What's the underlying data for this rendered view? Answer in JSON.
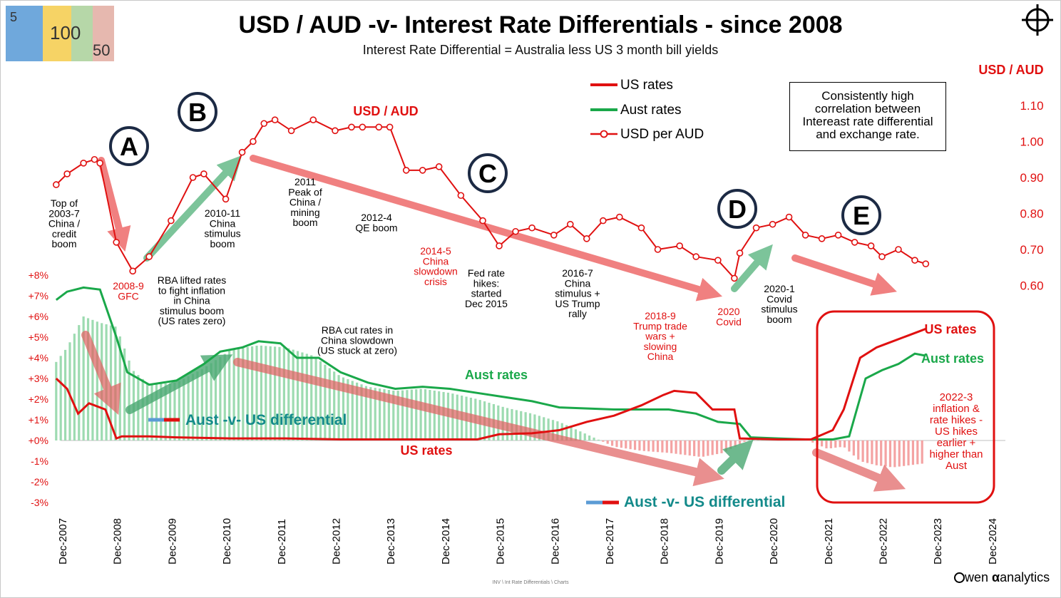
{
  "header": {
    "title": "USD / AUD -v- Interest Rate Differentials - since 2008",
    "subtitle": "Interest Rate Differential = Australia less US 3 month bill yields",
    "right_axis_title": "USD / AUD"
  },
  "legend": [
    {
      "label": "US rates",
      "color": "#e01010",
      "marker": "line"
    },
    {
      "label": "Aust rates",
      "color": "#1aa84a",
      "marker": "line"
    },
    {
      "label": "USD per AUD",
      "color": "#e01010",
      "marker": "circle"
    }
  ],
  "notes_box": [
    "Consistently high",
    "correlation between",
    "Intereast rate differential",
    "and exchange rate."
  ],
  "phase_labels": [
    "A",
    "B",
    "C",
    "D",
    "E"
  ],
  "annotations": {
    "usd_aud_label": "USD / AUD",
    "top_2003": [
      "Top of",
      "2003-7",
      "China /",
      "credit",
      "boom"
    ],
    "gfc": [
      "2008-9",
      "GFC"
    ],
    "stimulus_2010": [
      "2010-11",
      "China",
      "stimulus",
      "boom"
    ],
    "peak_2011": [
      "2011",
      "Peak of",
      "China /",
      "mining",
      "boom"
    ],
    "qe_boom": [
      "2012-4",
      "QE boom"
    ],
    "china_2014": [
      "2014-5",
      "China",
      "slowdown",
      "crisis"
    ],
    "fed_hikes": [
      "Fed rate",
      "hikes:",
      "started",
      "Dec 2015"
    ],
    "china_2016": [
      "2016-7",
      "China",
      "stimulus +",
      "US Trump",
      "rally"
    ],
    "trump_wars": [
      "2018-9",
      "Trump trade",
      "wars +",
      "slowing",
      "China"
    ],
    "covid": [
      "2020",
      "Covid"
    ],
    "covid_boom": [
      "2020-1",
      "Covid",
      "stimulus",
      "boom"
    ],
    "rba_lifted": [
      "RBA lifted rates",
      "to fight inflation",
      "in China",
      "stimulus boom",
      "(US rates zero)"
    ],
    "rba_cut": [
      "RBA cut rates in",
      "China slowdown",
      "(US stuck at zero)"
    ],
    "aust_rates_mid": "Aust rates",
    "us_rates_mid": "US rates",
    "us_rates_right": "US rates",
    "aust_rates_right": "Aust rates",
    "inflation_2022": [
      "2022-3",
      "inflation &",
      "rate hikes -",
      "US hikes",
      "earlier +",
      "higher than",
      "Aust"
    ],
    "diff_label": "Aust -v- US differential"
  },
  "footer": {
    "brand": "wen",
    "brand_symbol": "α",
    "brand_word": "analytics",
    "path": "INV \\ Int Rate Differentials \\ Charts"
  },
  "chart_data": {
    "type": "line",
    "x_tick_labels": [
      "Dec-2007",
      "Dec-2008",
      "Dec-2009",
      "Dec-2010",
      "Dec-2011",
      "Dec-2012",
      "Dec-2013",
      "Dec-2014",
      "Dec-2015",
      "Dec-2016",
      "Dec-2017",
      "Dec-2018",
      "Dec-2019",
      "Dec-2020",
      "Dec-2021",
      "Dec-2022",
      "Dec-2023",
      "Dec-2024"
    ],
    "left_axis": {
      "tick_labels": [
        "+8%",
        "+7%",
        "+6%",
        "+5%",
        "+4%",
        "+3%",
        "+2%",
        "+1%",
        "+0%",
        "-1%",
        "-2%",
        "-3%"
      ],
      "ylim": [
        -3,
        8
      ]
    },
    "right_axis": {
      "tick_labels": [
        "1.10",
        "1.00",
        "0.90",
        "0.80",
        "0.70",
        "0.60"
      ],
      "ylim": [
        0.6,
        1.1
      ]
    },
    "series": [
      {
        "name": "USD per AUD",
        "axis": "right",
        "color": "#e01010",
        "x": [
          2007.8,
          2008.0,
          2008.3,
          2008.5,
          2008.6,
          2008.9,
          2009.2,
          2009.5,
          2009.9,
          2010.3,
          2010.5,
          2010.9,
          2011.2,
          2011.4,
          2011.6,
          2011.8,
          2012.1,
          2012.5,
          2012.9,
          2013.2,
          2013.4,
          2013.7,
          2013.9,
          2014.2,
          2014.5,
          2014.8,
          2015.2,
          2015.6,
          2015.9,
          2016.2,
          2016.5,
          2016.9,
          2017.2,
          2017.5,
          2017.8,
          2018.1,
          2018.5,
          2018.8,
          2019.2,
          2019.5,
          2019.9,
          2020.2,
          2020.3,
          2020.6,
          2020.9,
          2021.2,
          2021.5,
          2021.8,
          2022.1,
          2022.4,
          2022.7,
          2022.9,
          2023.2,
          2023.5,
          2023.7
        ],
        "y": [
          0.88,
          0.91,
          0.94,
          0.95,
          0.94,
          0.72,
          0.64,
          0.68,
          0.78,
          0.9,
          0.91,
          0.84,
          0.97,
          1.0,
          1.05,
          1.06,
          1.03,
          1.06,
          1.03,
          1.04,
          1.04,
          1.04,
          1.04,
          0.92,
          0.92,
          0.93,
          0.85,
          0.78,
          0.71,
          0.75,
          0.76,
          0.74,
          0.77,
          0.73,
          0.78,
          0.79,
          0.76,
          0.7,
          0.71,
          0.68,
          0.67,
          0.62,
          0.69,
          0.76,
          0.77,
          0.79,
          0.74,
          0.73,
          0.74,
          0.72,
          0.71,
          0.68,
          0.7,
          0.67,
          0.66
        ]
      },
      {
        "name": "US rates",
        "axis": "left",
        "color": "#e01010",
        "x": [
          2007.8,
          2008.0,
          2008.2,
          2008.4,
          2008.7,
          2008.9,
          2009.0,
          2009.5,
          2010.0,
          2011.0,
          2012.0,
          2013.0,
          2014.0,
          2015.5,
          2015.9,
          2016.5,
          2017.0,
          2017.5,
          2018.0,
          2018.5,
          2018.9,
          2019.1,
          2019.5,
          2019.8,
          2020.0,
          2020.2,
          2020.3,
          2021.0,
          2021.6,
          2022.0,
          2022.2,
          2022.5,
          2022.8,
          2023.0,
          2023.3,
          2023.6,
          2023.7
        ],
        "y": [
          3.0,
          2.5,
          1.3,
          1.8,
          1.5,
          0.1,
          0.2,
          0.2,
          0.15,
          0.1,
          0.1,
          0.05,
          0.05,
          0.05,
          0.3,
          0.35,
          0.5,
          0.9,
          1.2,
          1.7,
          2.2,
          2.4,
          2.3,
          1.5,
          1.5,
          1.5,
          0.1,
          0.05,
          0.05,
          0.5,
          1.5,
          4.0,
          4.5,
          4.7,
          5.0,
          5.3,
          5.4
        ]
      },
      {
        "name": "Aust rates",
        "axis": "left",
        "color": "#1aa84a",
        "x": [
          2007.8,
          2008.0,
          2008.3,
          2008.6,
          2008.9,
          2009.1,
          2009.5,
          2010.0,
          2010.5,
          2010.8,
          2011.2,
          2011.5,
          2011.9,
          2012.2,
          2012.6,
          2013.0,
          2013.5,
          2014.0,
          2014.5,
          2015.0,
          2015.5,
          2016.0,
          2016.5,
          2017.0,
          2018.0,
          2019.0,
          2019.5,
          2019.9,
          2020.3,
          2020.5,
          2021.0,
          2021.5,
          2021.8,
          2022.0,
          2022.3,
          2022.6,
          2022.9,
          2023.2,
          2023.5,
          2023.7
        ],
        "y": [
          6.8,
          7.2,
          7.4,
          7.3,
          5.0,
          3.3,
          2.7,
          2.9,
          3.7,
          4.3,
          4.5,
          4.8,
          4.7,
          4.0,
          4.0,
          3.3,
          2.8,
          2.5,
          2.6,
          2.5,
          2.3,
          2.1,
          1.9,
          1.6,
          1.5,
          1.5,
          1.3,
          0.9,
          0.8,
          0.15,
          0.1,
          0.05,
          0.05,
          0.05,
          0.2,
          3.0,
          3.4,
          3.7,
          4.2,
          4.1
        ]
      },
      {
        "name": "Aust -v- US differential",
        "axis": "left",
        "color": "#7fd49a",
        "x": [
          2007.8,
          2008.0,
          2008.3,
          2008.6,
          2008.9,
          2009.2,
          2009.5,
          2010.0,
          2010.5,
          2011.0,
          2011.5,
          2012.0,
          2012.5,
          2013.0,
          2013.5,
          2014.0,
          2014.5,
          2015.0,
          2015.5,
          2016.0,
          2016.5,
          2017.0,
          2017.5,
          2018.0,
          2018.5,
          2019.0,
          2019.3,
          2019.6,
          2020.0,
          2020.5,
          2021.0,
          2021.5,
          2021.9,
          2022.2,
          2022.5,
          2022.8,
          2023.1,
          2023.4,
          2023.7
        ],
        "y": [
          3.8,
          4.5,
          6.0,
          5.7,
          5.5,
          3.4,
          2.7,
          2.8,
          3.5,
          4.4,
          4.6,
          4.5,
          4.1,
          3.1,
          2.6,
          2.4,
          2.5,
          2.3,
          2.0,
          1.6,
          1.3,
          0.9,
          0.3,
          -0.3,
          -0.5,
          -0.6,
          -0.7,
          -0.8,
          -0.6,
          0.1,
          0.05,
          0.05,
          -0.4,
          -0.3,
          -1.0,
          -1.2,
          -1.3,
          -1.2,
          -1.1
        ]
      }
    ]
  }
}
